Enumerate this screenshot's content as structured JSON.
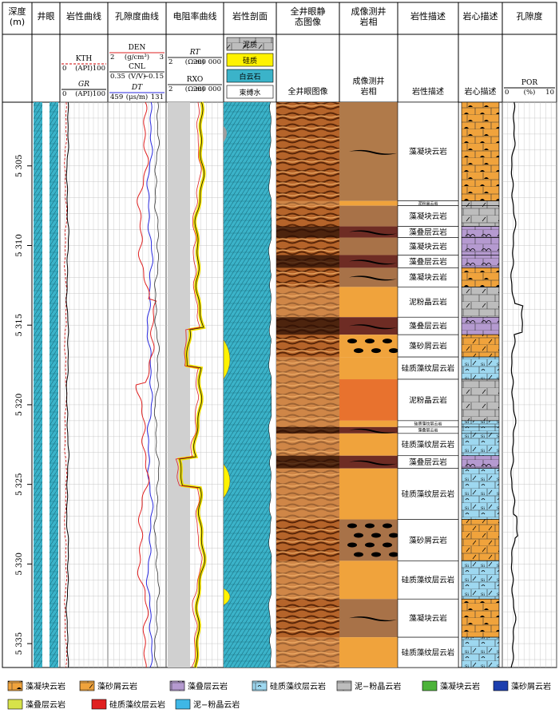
{
  "headers": [
    {
      "id": "depth",
      "label": "深度\n(m)"
    },
    {
      "id": "borehole",
      "label": "井眼"
    },
    {
      "id": "litho",
      "label": "岩性曲线"
    },
    {
      "id": "poro",
      "label": "孔隙度曲线"
    },
    {
      "id": "resist",
      "label": "电阻率曲线"
    },
    {
      "id": "profile",
      "label": "岩性剖面"
    },
    {
      "id": "static",
      "label": "全井眼静\n态图像"
    },
    {
      "id": "facies",
      "label": "成像测井\n岩相"
    },
    {
      "id": "desc",
      "label": "岩性描述"
    },
    {
      "id": "core",
      "label": "岩心描述"
    },
    {
      "id": "porosity",
      "label": "孔隙度"
    }
  ],
  "curve_scales": {
    "kth": {
      "name": "KTH",
      "unit": "(API)",
      "min": "0",
      "max": "100"
    },
    "gr": {
      "name": "GR",
      "unit": "(API)",
      "min": "0",
      "max": "100"
    },
    "den": {
      "name": "DEN",
      "unit": "(g/cm³)",
      "min": "2",
      "max": "3"
    },
    "cnl": {
      "name": "CNL",
      "unit": "(V/V)",
      "min": "0.35",
      "max": "−0.15"
    },
    "dt": {
      "name": "DT",
      "unit": "(μs/m)",
      "min": "459",
      "max": "131"
    },
    "rt": {
      "name": "RT",
      "unit": "(Ω·m)",
      "min": "2",
      "max": "200 000"
    },
    "rxo": {
      "name": "RXO",
      "unit": "(Ω·m)",
      "min": "2",
      "max": "200 000"
    },
    "por": {
      "name": "POR",
      "unit": "(%)",
      "min": "0",
      "max": "10"
    }
  },
  "profile_legend": [
    "泥质",
    "硅质",
    "白云石",
    "束缚水"
  ],
  "sub_headers": {
    "static": "全井眼图像",
    "facies": "成像测井\n岩相",
    "desc": "岩性描述",
    "core": "岩心描述"
  },
  "depth_ticks": [
    "5 305",
    "5 310",
    "5 315",
    "5 320",
    "5 325",
    "5 330",
    "5 335"
  ],
  "depth_range": [
    5301,
    5336.5
  ],
  "intervals": [
    {
      "top": 5301.0,
      "bot": 5307.2,
      "facies": "藻凝块云岩",
      "core": "bq",
      "fcolor": "#b07a4a",
      "mark": "wavy"
    },
    {
      "top": 5307.2,
      "bot": 5307.5,
      "facies": "泥粉晶云岩",
      "core": "mud",
      "fcolor": "#f0a33c",
      "mark": ""
    },
    {
      "top": 5307.5,
      "bot": 5308.8,
      "facies": "藻凝块云岩",
      "core": "mud",
      "fcolor": "#a87248",
      "mark": ""
    },
    {
      "top": 5308.8,
      "bot": 5309.5,
      "facies": "藻叠层云岩",
      "core": "st",
      "fcolor": "#6e2c24",
      "mark": "wavy"
    },
    {
      "top": 5309.5,
      "bot": 5310.6,
      "facies": "藻凝块云岩",
      "core": "st",
      "fcolor": "#a87248",
      "mark": ""
    },
    {
      "top": 5310.6,
      "bot": 5311.4,
      "facies": "藻叠层云岩",
      "core": "st",
      "fcolor": "#6e2c24",
      "mark": "wavy"
    },
    {
      "top": 5311.4,
      "bot": 5312.6,
      "facies": "藻凝块云岩",
      "core": "bq",
      "fcolor": "#a87248",
      "mark": "wavy"
    },
    {
      "top": 5312.6,
      "bot": 5314.5,
      "facies": "泥粉晶云岩",
      "core": "mud",
      "fcolor": "#f0a33c",
      "mark": ""
    },
    {
      "top": 5314.5,
      "bot": 5315.6,
      "facies": "藻叠层云岩",
      "core": "st",
      "fcolor": "#6e2c24",
      "mark": "wavy"
    },
    {
      "top": 5315.6,
      "bot": 5317.0,
      "facies": "藻砂屑云岩",
      "core": "or",
      "fcolor": "#f0a33c",
      "mark": "ovals"
    },
    {
      "top": 5317.0,
      "bot": 5318.4,
      "facies": "硅质藻纹层云岩",
      "core": "si",
      "fcolor": "#f0a33c",
      "mark": ""
    },
    {
      "top": 5318.4,
      "bot": 5321.0,
      "facies": "泥粉晶云岩",
      "core": "mud",
      "fcolor": "#e8722e",
      "mark": ""
    },
    {
      "top": 5321.0,
      "bot": 5321.4,
      "facies": "硅质藻纹层云岩",
      "core": "si",
      "fcolor": "#f0a33c",
      "mark": ""
    },
    {
      "top": 5321.4,
      "bot": 5321.8,
      "facies": "藻叠层云岩",
      "core": "si",
      "fcolor": "#6e2c24",
      "mark": "wavy"
    },
    {
      "top": 5321.8,
      "bot": 5323.2,
      "facies": "硅质藻纹层云岩",
      "core": "si",
      "fcolor": "#f0a33c",
      "mark": ""
    },
    {
      "top": 5323.2,
      "bot": 5324.0,
      "facies": "藻叠层云岩",
      "core": "st",
      "fcolor": "#6e2c24",
      "mark": "wavy"
    },
    {
      "top": 5324.0,
      "bot": 5327.2,
      "facies": "硅质藻纹层云岩",
      "core": "si",
      "fcolor": "#f0a33c",
      "mark": ""
    },
    {
      "top": 5327.2,
      "bot": 5329.8,
      "facies": "藻砂屑云岩",
      "core": "or",
      "fcolor": "#a87248",
      "mark": "ovals"
    },
    {
      "top": 5329.8,
      "bot": 5332.2,
      "facies": "硅质藻纹层云岩",
      "core": "si",
      "fcolor": "#f0a33c",
      "mark": ""
    },
    {
      "top": 5332.2,
      "bot": 5334.6,
      "facies": "藻凝块云岩",
      "core": "bq",
      "fcolor": "#a87248",
      "mark": "wavy"
    },
    {
      "top": 5334.6,
      "bot": 5336.5,
      "facies": "硅质藻纹层云岩",
      "core": "si",
      "fcolor": "#f0a33c",
      "mark": ""
    }
  ],
  "legend": [
    {
      "pattern": "bq",
      "label": "藻凝块云岩"
    },
    {
      "pattern": "or",
      "label": "藻砂屑云岩"
    },
    {
      "pattern": "st",
      "label": "藻叠层云岩"
    },
    {
      "pattern": "si",
      "label": "硅质藻纹层云岩"
    },
    {
      "pattern": "mud",
      "label": "泥−粉晶云岩"
    },
    {
      "pattern": "green",
      "label": "藻凝块云岩"
    },
    {
      "pattern": "blue",
      "label": "藻砂屑云岩"
    },
    {
      "pattern": "yellowgreen",
      "label": "藻叠层云岩"
    },
    {
      "pattern": "red",
      "label": "硅质藻纹层云岩"
    },
    {
      "pattern": "cyan",
      "label": "泥−粉晶云岩"
    }
  ],
  "colors": {
    "dolomite": "#3bb3c9",
    "silica": "#fff200",
    "mud": "#9e9e9e",
    "orange": "#f0a33c",
    "brown": "#a87248",
    "dark": "#6e2c24",
    "core_blue": "#9ed8f0",
    "core_purple": "#b59ad0",
    "core_gray": "#bdbdbd"
  }
}
